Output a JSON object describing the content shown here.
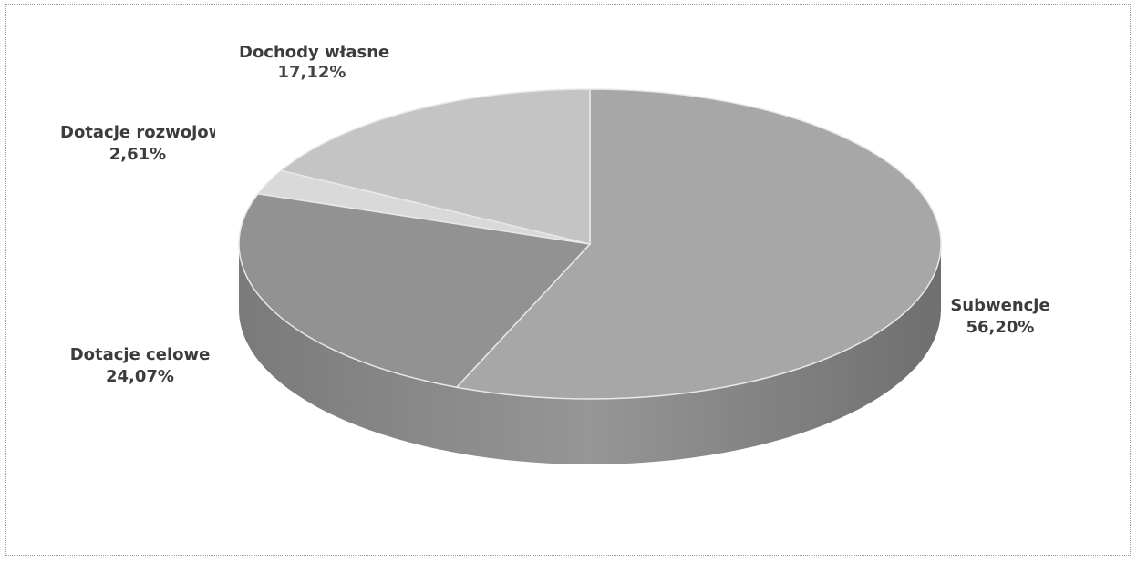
{
  "chart_data": {
    "type": "pie",
    "title": "",
    "style": "3d",
    "slices": [
      {
        "name": "Subwencje",
        "label": "56,20%",
        "value": 56.2,
        "color": "#a7a7a7"
      },
      {
        "name": "Dotacje celowe",
        "label": "24,07%",
        "value": 24.07,
        "color": "#929292"
      },
      {
        "name": "Dotacje rozwojowe",
        "label": "2,61%",
        "value": 2.61,
        "color": "#d9d9d9"
      },
      {
        "name": "Dochody własne",
        "label": "17,12%",
        "value": 17.12,
        "color": "#c4c4c4"
      }
    ]
  },
  "labels": {
    "dochody_name": "Dochody własne",
    "dochody_pct": "17,12%",
    "rozwoj_name": "Dotacje rozwojowe",
    "rozwoj_pct": "2,61%",
    "celowe_name": "Dotacje celowe",
    "celowe_pct": "24,07%",
    "subw_name": "Subwencje",
    "subw_pct": "56,20%"
  }
}
